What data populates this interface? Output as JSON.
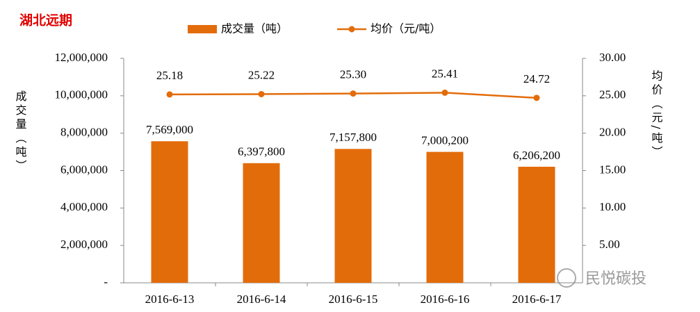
{
  "chart_data": {
    "type": "bar_line",
    "title": "湖北远期",
    "watermark": "民悦碳投",
    "ylabel": "成交量（吨）",
    "y2label": "均价（元/吨）",
    "categories": [
      "2016-6-13",
      "2016-6-14",
      "2016-6-15",
      "2016-6-16",
      "2016-6-17"
    ],
    "series": [
      {
        "name": "成交量（吨）",
        "type": "bar",
        "color": "#e36c0a",
        "values": [
          7569000,
          6397800,
          7157800,
          7000200,
          6206200
        ],
        "value_labels": [
          "7,569,000",
          "6,397,800",
          "7,157,800",
          "7,000,200",
          "6,206,200"
        ]
      },
      {
        "name": "均价（元/吨）",
        "type": "line",
        "axis": "y2",
        "color": "#e36c0a",
        "values": [
          25.18,
          25.22,
          25.3,
          25.41,
          24.72
        ],
        "value_labels": [
          "25.18",
          "25.22",
          "25.30",
          "25.41",
          "24.72"
        ]
      }
    ],
    "ylim": [
      0,
      12000000
    ],
    "yticks": [
      {
        "value": 0,
        "label": "-"
      },
      {
        "value": 2000000,
        "label": "2,000,000"
      },
      {
        "value": 4000000,
        "label": "4,000,000"
      },
      {
        "value": 6000000,
        "label": "6,000,000"
      },
      {
        "value": 8000000,
        "label": "8,000,000"
      },
      {
        "value": 10000000,
        "label": "10,000,000"
      },
      {
        "value": 12000000,
        "label": "12,000,000"
      }
    ],
    "y2lim": [
      0,
      30
    ],
    "y2ticks": [
      {
        "value": 5,
        "label": "5.00"
      },
      {
        "value": 10,
        "label": "10.00"
      },
      {
        "value": 15,
        "label": "15.00"
      },
      {
        "value": 20,
        "label": "20.00"
      },
      {
        "value": 25,
        "label": "25.00"
      },
      {
        "value": 30,
        "label": "30.00"
      }
    ],
    "grid": false
  }
}
